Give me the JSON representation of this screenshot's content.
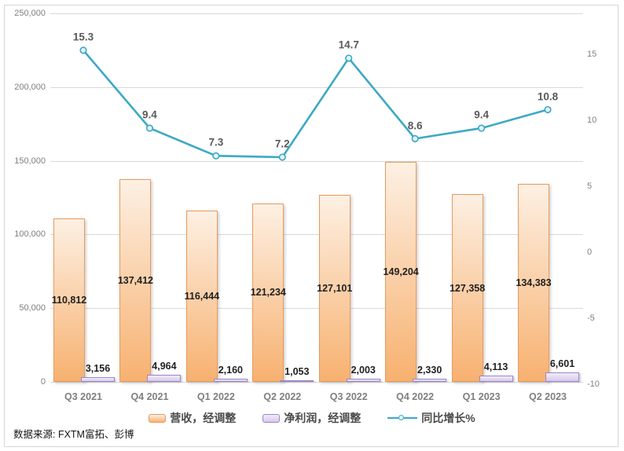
{
  "source_note": "数据来源: FXTM富拓、彭博",
  "colors": {
    "grid": "#D9D9D9",
    "axis_text": "#808080",
    "frame_border": "#D6D6D6",
    "line_series": "#3DA8C5"
  },
  "chart_data": {
    "type": "combo",
    "categories": [
      "Q3 2021",
      "Q4 2021",
      "Q1 2022",
      "Q2 2022",
      "Q3 2022",
      "Q4 2022",
      "Q1 2023",
      "Q2 2023"
    ],
    "series": [
      {
        "name": "营收，经调整",
        "type": "bar",
        "axis": "left",
        "values": [
          110812,
          137412,
          116444,
          121234,
          127101,
          149204,
          127358,
          134383
        ],
        "fill_top": "#FDF0E3",
        "fill_bottom": "#F7B170",
        "border_color": "#E79A5D",
        "label_position": "inside-center",
        "label_color": "#1F1F1F"
      },
      {
        "name": "净利润，经调整",
        "type": "bar",
        "axis": "left",
        "values": [
          3156,
          4964,
          2160,
          1053,
          2003,
          2330,
          4113,
          6601
        ],
        "fill_top": "#F1ECF8",
        "fill_bottom": "#D7C9EC",
        "border_color": "#9B87C7",
        "label_position": "outside-end",
        "label_color": "#1F1F1F"
      },
      {
        "name": "同比增长%",
        "type": "line",
        "axis": "right",
        "values": [
          15.3,
          9.4,
          7.3,
          7.2,
          14.7,
          8.6,
          9.4,
          10.8
        ],
        "color": "#3DA8C5",
        "marker": "circle",
        "marker_fill": "#E3F3F9",
        "label_color": "#595959"
      }
    ],
    "left_axis": {
      "min": 0,
      "max": 250000,
      "step": 50000
    },
    "right_axis": {
      "min": -10,
      "max": 15,
      "step": 5
    },
    "gridlines": "horizontal",
    "legend_position": "bottom",
    "title": ""
  }
}
